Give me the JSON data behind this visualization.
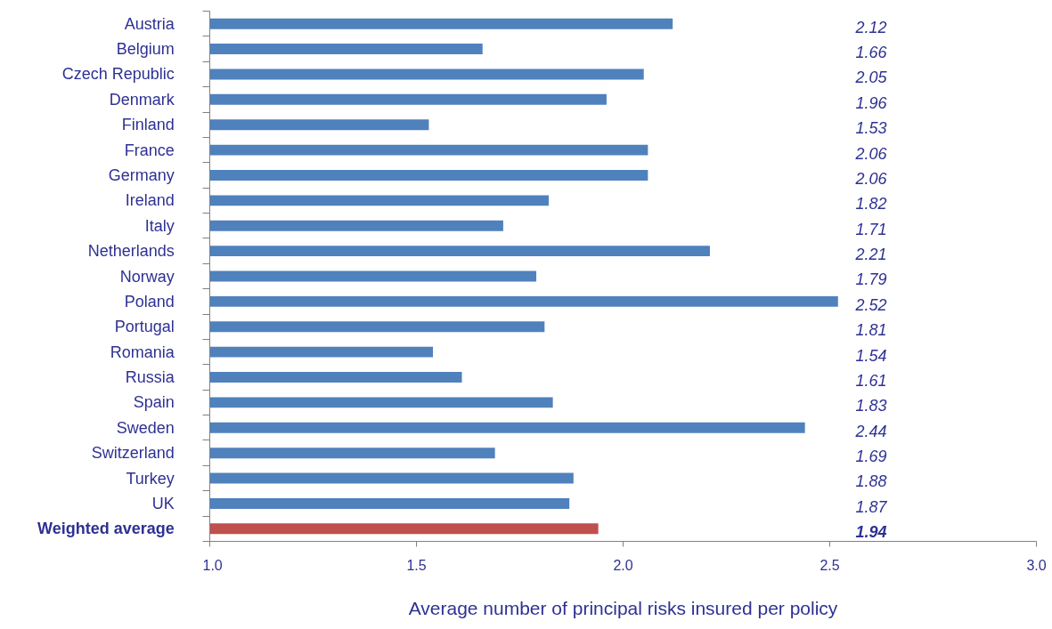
{
  "chart_data": {
    "type": "bar",
    "orientation": "horizontal",
    "xlabel": "Average number of principal risks insured per policy",
    "categories": [
      "Austria",
      "Belgium",
      "Czech Republic",
      "Denmark",
      "Finland",
      "France",
      "Germany",
      "Ireland",
      "Italy",
      "Netherlands",
      "Norway",
      "Poland",
      "Portugal",
      "Romania",
      "Russia",
      "Spain",
      "Sweden",
      "Switzerland",
      "Turkey",
      "UK",
      "Weighted average"
    ],
    "values": [
      2.12,
      1.66,
      2.05,
      1.96,
      1.53,
      2.06,
      2.06,
      1.82,
      1.71,
      2.21,
      1.79,
      2.52,
      1.81,
      1.54,
      1.61,
      1.83,
      2.44,
      1.69,
      1.88,
      1.87,
      1.94
    ],
    "colors": [
      "#4f81bd",
      "#4f81bd",
      "#4f81bd",
      "#4f81bd",
      "#4f81bd",
      "#4f81bd",
      "#4f81bd",
      "#4f81bd",
      "#4f81bd",
      "#4f81bd",
      "#4f81bd",
      "#4f81bd",
      "#4f81bd",
      "#4f81bd",
      "#4f81bd",
      "#4f81bd",
      "#4f81bd",
      "#4f81bd",
      "#4f81bd",
      "#4f81bd",
      "#c0504d"
    ],
    "xlim": [
      1.0,
      3.0
    ],
    "xticks": [
      {
        "value": 1.0,
        "label": "1.0"
      },
      {
        "value": 1.5,
        "label": "1.5"
      },
      {
        "value": 2.0,
        "label": "2.0"
      },
      {
        "value": 2.5,
        "label": "2.5"
      },
      {
        "value": 3.0,
        "label": "3.0"
      }
    ],
    "data_labels": true,
    "grid": false
  }
}
